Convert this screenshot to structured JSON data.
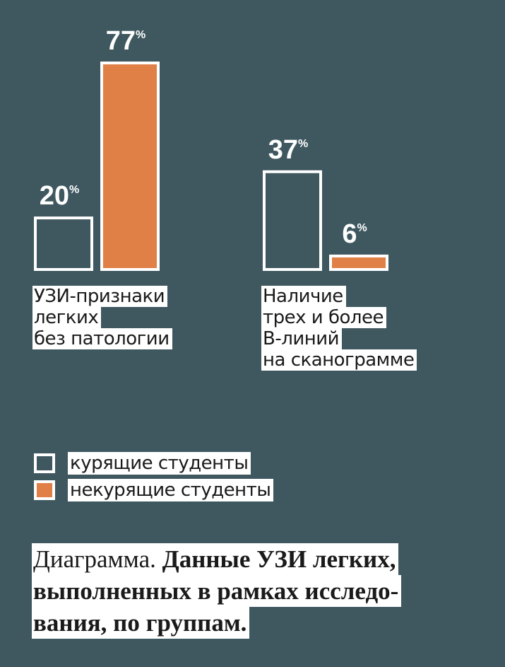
{
  "chart_data": {
    "type": "bar",
    "categories": [
      [
        "УЗИ-признаки",
        "легких",
        "без патологии"
      ],
      [
        "Наличие",
        "трех и более",
        "В-линий",
        "на сканограмме"
      ]
    ],
    "series": [
      {
        "name": "курящие студенты",
        "color": "#3f5860",
        "values": [
          20,
          37
        ]
      },
      {
        "name": "некурящие студенты",
        "color": "#e07f46",
        "values": [
          77,
          6
        ]
      }
    ],
    "value_suffix": "%",
    "ylim": [
      0,
      77
    ],
    "grid": false,
    "legend_position": "bottom-left"
  },
  "legend": [
    {
      "label": "курящие студенты",
      "color": "#3f5860"
    },
    {
      "label": "некурящие студенты",
      "color": "#e07f46"
    }
  ],
  "caption": {
    "prefix": "Диаграмма. ",
    "lines": [
      "Данные УЗИ легких,",
      "выполненных в рамках исследо-",
      "вания, по группам."
    ]
  },
  "colors": {
    "background": "#3f5860",
    "outline": "#ffffff",
    "accent": "#e07f46"
  }
}
